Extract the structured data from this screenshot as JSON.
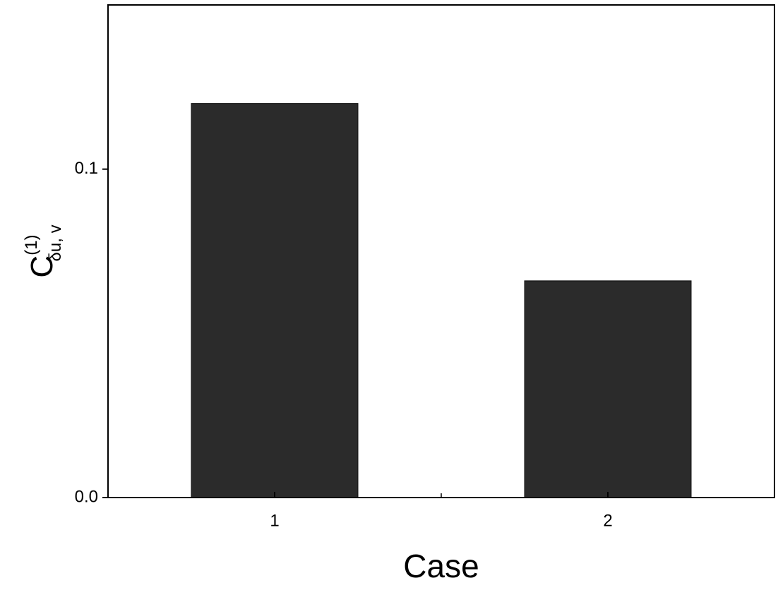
{
  "chart_data": {
    "type": "bar",
    "x_label": "Case",
    "y_label": {
      "main": "C",
      "superscript": "(1)",
      "subscript": "δu, v"
    },
    "categories": [
      "1",
      "2"
    ],
    "values": [
      0.12,
      0.066
    ],
    "color": "#2b2b2b",
    "ylim": [
      0,
      0.15
    ],
    "yticks": [
      {
        "value": 0,
        "label": "0.0"
      },
      0.1
    ],
    "grid": false
  }
}
